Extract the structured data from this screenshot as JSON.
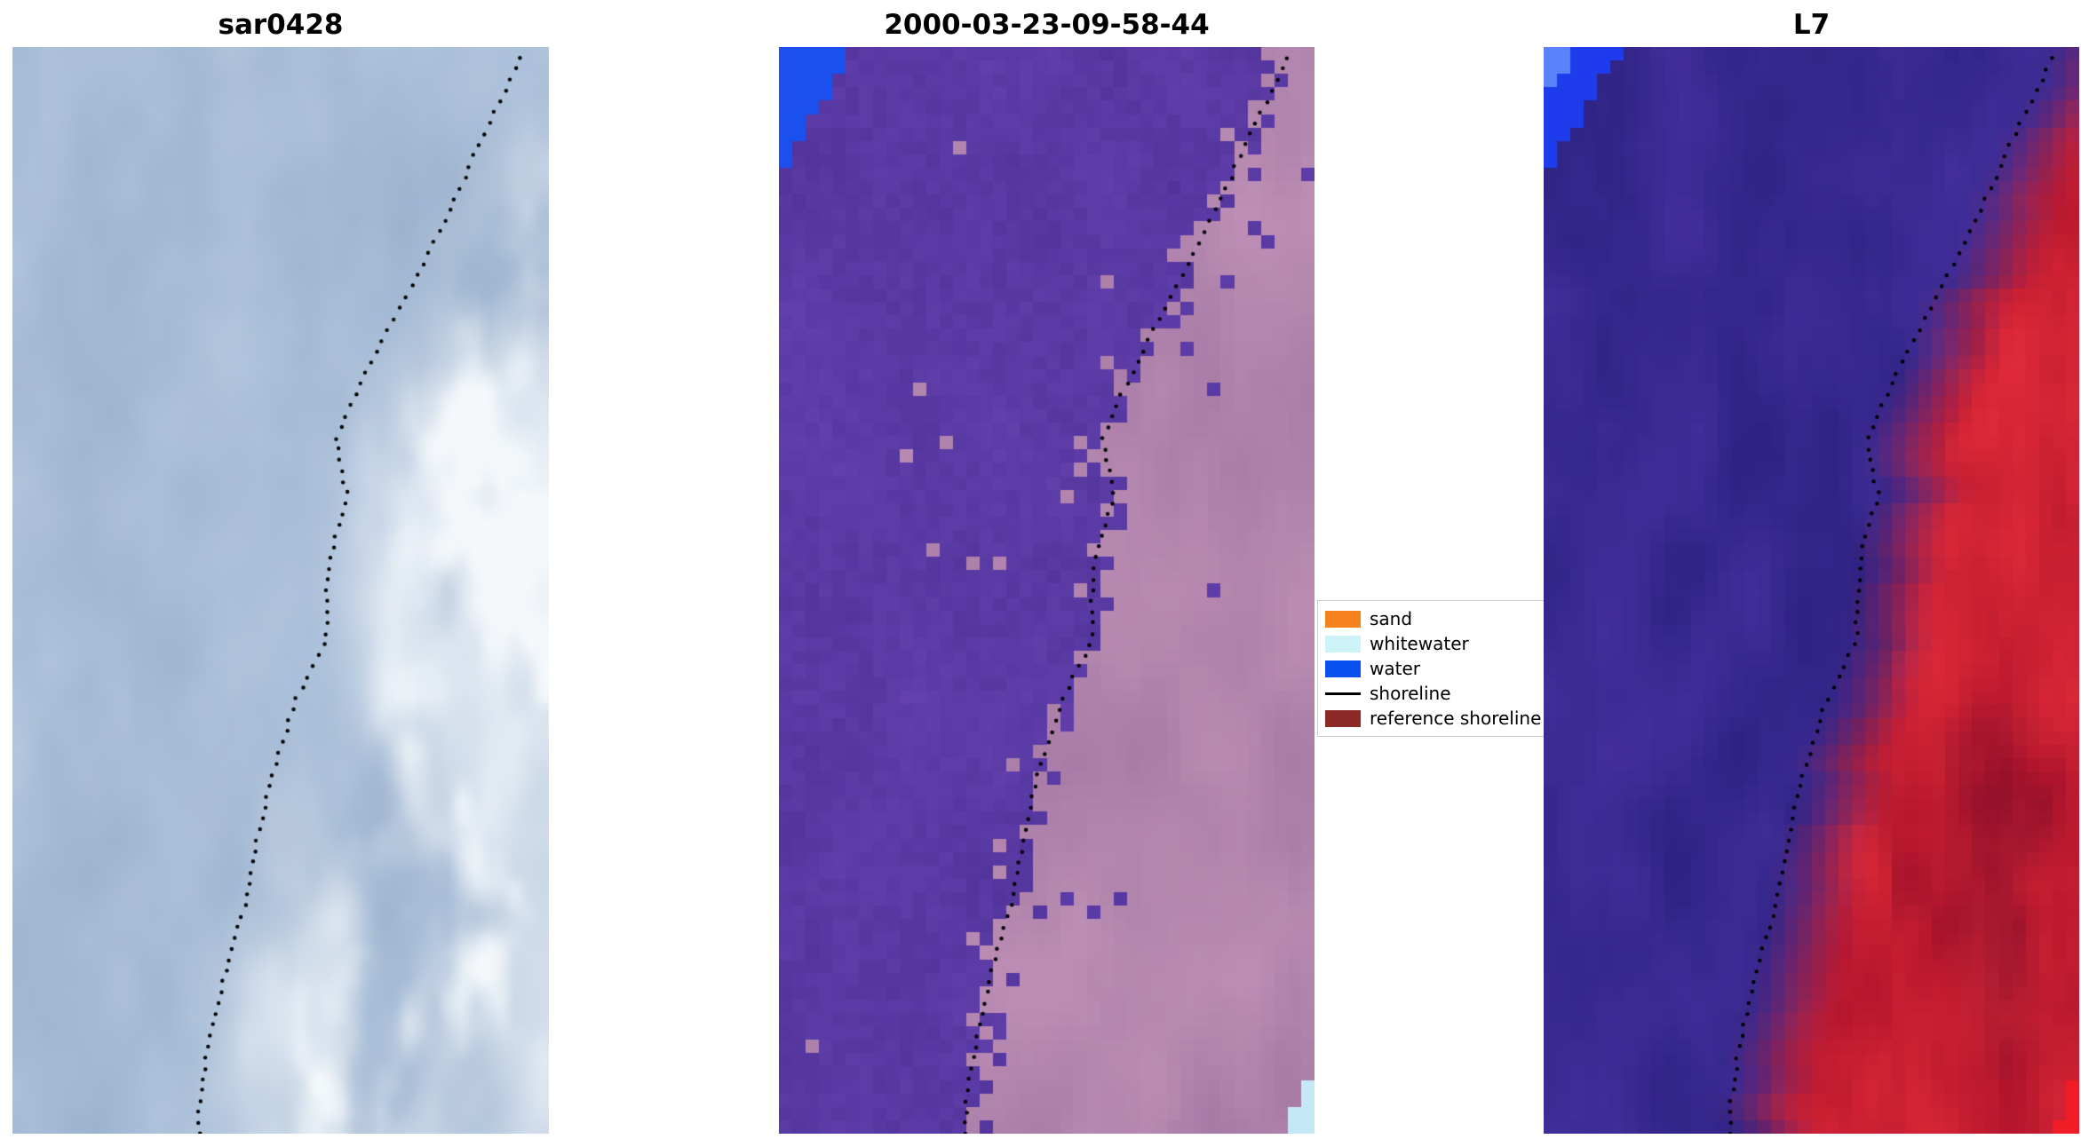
{
  "figure": {
    "background": "#ffffff"
  },
  "panels": [
    {
      "id": "sar0428",
      "title": "sar0428",
      "kind": "sar",
      "smooth": true,
      "seed": 11,
      "palette": {
        "water_base": "#a7bcd6",
        "land_bright": "#f4f8fb"
      }
    },
    {
      "id": "classified",
      "title": "2000-03-23-09-58-44",
      "kind": "classified",
      "smooth": false,
      "seed": 23,
      "palette": {
        "water_class": "#5a3aa4",
        "land_class": "#b184ad",
        "water_patch": "#1950ee",
        "whitewater_patch": "#c6e8f6"
      }
    },
    {
      "id": "L7",
      "title": "L7",
      "kind": "falsecolor",
      "smooth": false,
      "seed": 37,
      "palette": {
        "water_dark": "#37288e",
        "land_red": "#c81f32",
        "water_patch": "#1e3ceb",
        "corner_red": "#f01c26"
      }
    }
  ],
  "shoreline_style": {
    "marker": "dot",
    "color": "#000000"
  },
  "shoreline_normalized": [
    [
      0.955,
      0.0
    ],
    [
      0.93,
      0.03
    ],
    [
      0.9,
      0.06
    ],
    [
      0.865,
      0.095
    ],
    [
      0.835,
      0.13
    ],
    [
      0.8,
      0.165
    ],
    [
      0.755,
      0.21
    ],
    [
      0.71,
      0.25
    ],
    [
      0.665,
      0.295
    ],
    [
      0.63,
      0.33
    ],
    [
      0.605,
      0.36
    ],
    [
      0.615,
      0.39
    ],
    [
      0.625,
      0.415
    ],
    [
      0.605,
      0.445
    ],
    [
      0.59,
      0.475
    ],
    [
      0.585,
      0.51
    ],
    [
      0.585,
      0.545
    ],
    [
      0.555,
      0.575
    ],
    [
      0.525,
      0.605
    ],
    [
      0.505,
      0.64
    ],
    [
      0.48,
      0.675
    ],
    [
      0.465,
      0.71
    ],
    [
      0.45,
      0.745
    ],
    [
      0.44,
      0.775
    ],
    [
      0.425,
      0.805
    ],
    [
      0.405,
      0.835
    ],
    [
      0.39,
      0.865
    ],
    [
      0.375,
      0.9
    ],
    [
      0.36,
      0.935
    ],
    [
      0.35,
      0.97
    ],
    [
      0.347,
      1.0
    ]
  ],
  "legend": {
    "entries": [
      {
        "label": "sand",
        "swatch": "patch",
        "color": "#f5821d"
      },
      {
        "label": "whitewater",
        "swatch": "patch",
        "color": "#cdf3f9"
      },
      {
        "label": "water",
        "swatch": "patch",
        "color": "#0a50ef"
      },
      {
        "label": "shoreline",
        "swatch": "line",
        "color": "#000000"
      },
      {
        "label": "reference shoreline",
        "swatch": "patch",
        "color": "#8b2a28"
      }
    ]
  }
}
